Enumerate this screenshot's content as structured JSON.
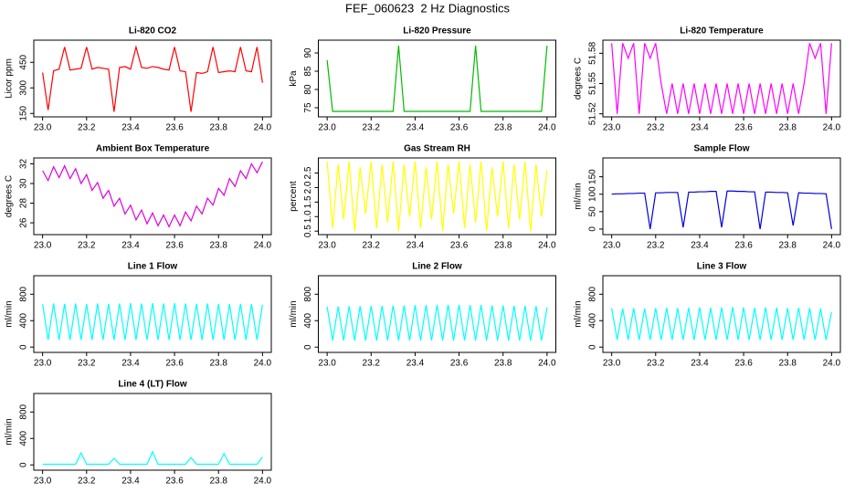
{
  "title": "FEF_060623  2 Hz Diagnostics",
  "chart_data": [
    {
      "type": "line",
      "title": "Li-820 CO2",
      "ylabel": "Licor ppm",
      "color": "#ff0000",
      "x": [
        23.0,
        23.025,
        23.05,
        23.075,
        23.1,
        23.125,
        23.15,
        23.175,
        23.2,
        23.225,
        23.25,
        23.275,
        23.3,
        23.325,
        23.35,
        23.375,
        23.4,
        23.425,
        23.45,
        23.475,
        23.5,
        23.525,
        23.55,
        23.575,
        23.6,
        23.625,
        23.65,
        23.675,
        23.7,
        23.725,
        23.75,
        23.775,
        23.8,
        23.825,
        23.85,
        23.875,
        23.9,
        23.925,
        23.95,
        23.975,
        24.0
      ],
      "values": [
        390,
        170,
        400,
        410,
        540,
        405,
        410,
        415,
        540,
        410,
        420,
        415,
        410,
        160,
        420,
        425,
        410,
        540,
        420,
        415,
        425,
        420,
        410,
        405,
        540,
        400,
        395,
        160,
        390,
        385,
        395,
        540,
        390,
        395,
        400,
        395,
        540,
        400,
        395,
        540,
        330
      ],
      "xlim": [
        22.96,
        24.04
      ],
      "xticks": [
        {
          "value": 23,
          "label": "23.0"
        },
        23.2,
        23.4,
        23.6,
        23.8,
        {
          "value": 24,
          "label": "24.0"
        }
      ],
      "ylim": [
        130,
        580
      ],
      "yticks": [
        150,
        300,
        450
      ]
    },
    {
      "type": "line",
      "title": "Li-820 Pressure",
      "ylabel": "kPa",
      "color": "#00bb00",
      "x": [
        23.0,
        23.025,
        23.05,
        23.075,
        23.1,
        23.125,
        23.15,
        23.175,
        23.2,
        23.225,
        23.25,
        23.275,
        23.3,
        23.325,
        23.35,
        23.375,
        23.4,
        23.425,
        23.45,
        23.475,
        23.5,
        23.525,
        23.55,
        23.575,
        23.6,
        23.625,
        23.65,
        23.675,
        23.7,
        23.725,
        23.75,
        23.775,
        23.8,
        23.825,
        23.85,
        23.875,
        23.9,
        23.925,
        23.95,
        23.975,
        24.0
      ],
      "values": [
        88,
        74,
        74,
        74,
        74,
        74,
        74,
        74,
        74,
        74,
        74,
        74,
        74,
        92,
        74,
        74,
        74,
        74,
        74,
        74,
        74,
        74,
        74,
        74,
        74,
        74,
        74,
        92,
        74,
        74,
        74,
        74,
        74,
        74,
        74,
        74,
        74,
        74,
        74,
        74,
        92
      ],
      "xlim": [
        22.96,
        24.04
      ],
      "xticks": [
        {
          "value": 23,
          "label": "23.0"
        },
        23.2,
        23.4,
        23.6,
        23.8,
        {
          "value": 24,
          "label": "24.0"
        }
      ],
      "ylim": [
        72.5,
        93.5
      ],
      "yticks": [
        75,
        80,
        85,
        90
      ]
    },
    {
      "type": "line",
      "title": "Li-820 Temperature",
      "ylabel": "degrees C",
      "color": "#ff00ff",
      "x": [
        23.0,
        23.025,
        23.05,
        23.075,
        23.1,
        23.125,
        23.15,
        23.175,
        23.2,
        23.225,
        23.25,
        23.275,
        23.3,
        23.325,
        23.35,
        23.375,
        23.4,
        23.425,
        23.45,
        23.475,
        23.5,
        23.525,
        23.55,
        23.575,
        23.6,
        23.625,
        23.65,
        23.675,
        23.7,
        23.725,
        23.75,
        23.775,
        23.8,
        23.825,
        23.85,
        23.875,
        23.9,
        23.925,
        23.95,
        23.975,
        24.0
      ],
      "values": [
        51.59,
        51.52,
        51.59,
        51.575,
        51.59,
        51.52,
        51.59,
        51.575,
        51.59,
        51.55,
        51.52,
        51.55,
        51.52,
        51.55,
        51.52,
        51.55,
        51.52,
        51.55,
        51.52,
        51.55,
        51.52,
        51.55,
        51.52,
        51.55,
        51.52,
        51.55,
        51.52,
        51.55,
        51.52,
        51.55,
        51.52,
        51.55,
        51.52,
        51.55,
        51.52,
        51.55,
        51.59,
        51.575,
        51.59,
        51.52,
        51.59
      ],
      "xlim": [
        22.96,
        24.04
      ],
      "xticks": [
        {
          "value": 23,
          "label": "23.0"
        },
        23.2,
        23.4,
        23.6,
        23.8,
        {
          "value": 24,
          "label": "24.0"
        }
      ],
      "ylim": [
        51.517,
        51.593
      ],
      "yticks": [
        51.52,
        51.55,
        51.58
      ]
    },
    {
      "type": "line",
      "title": "Ambient Box Temperature",
      "ylabel": "degrees C",
      "color": "#dd00dd",
      "x": [
        23.0,
        23.025,
        23.05,
        23.075,
        23.1,
        23.125,
        23.15,
        23.175,
        23.2,
        23.225,
        23.25,
        23.275,
        23.3,
        23.325,
        23.35,
        23.375,
        23.4,
        23.425,
        23.45,
        23.475,
        23.5,
        23.525,
        23.55,
        23.575,
        23.6,
        23.625,
        23.65,
        23.675,
        23.7,
        23.725,
        23.75,
        23.775,
        23.8,
        23.825,
        23.85,
        23.875,
        23.9,
        23.925,
        23.95,
        23.975,
        24.0
      ],
      "values": [
        31.3,
        30.3,
        31.7,
        30.6,
        31.8,
        30.5,
        31.5,
        30.0,
        30.9,
        29.3,
        30.1,
        28.5,
        29.3,
        27.7,
        28.5,
        26.9,
        27.8,
        26.3,
        27.3,
        25.9,
        27.0,
        25.7,
        26.8,
        25.6,
        26.8,
        25.7,
        27.1,
        26.2,
        27.7,
        26.9,
        28.5,
        27.8,
        29.5,
        28.8,
        30.5,
        29.7,
        31.3,
        30.5,
        32.0,
        31.1,
        32.2
      ],
      "xlim": [
        22.96,
        24.04
      ],
      "xticks": [
        {
          "value": 23,
          "label": "23.0"
        },
        23.2,
        23.4,
        23.6,
        23.8,
        {
          "value": 24,
          "label": "24.0"
        }
      ],
      "ylim": [
        24.8,
        32.6
      ],
      "yticks": [
        26,
        28,
        30,
        32
      ]
    },
    {
      "type": "line",
      "title": "Gas Stream RH",
      "ylabel": "percent",
      "color": "#ffff00",
      "x": [
        23.0,
        23.025,
        23.05,
        23.075,
        23.1,
        23.125,
        23.15,
        23.175,
        23.2,
        23.225,
        23.25,
        23.275,
        23.3,
        23.325,
        23.35,
        23.375,
        23.4,
        23.425,
        23.45,
        23.475,
        23.5,
        23.525,
        23.55,
        23.575,
        23.6,
        23.625,
        23.65,
        23.675,
        23.7,
        23.725,
        23.75,
        23.775,
        23.8,
        23.825,
        23.85,
        23.875,
        23.9,
        23.925,
        23.95,
        23.975,
        24.0
      ],
      "values": [
        2.9,
        0.6,
        2.8,
        0.9,
        2.9,
        0.5,
        2.7,
        1.1,
        2.9,
        0.6,
        2.8,
        0.8,
        2.9,
        0.5,
        2.8,
        1.0,
        2.9,
        0.6,
        2.7,
        0.9,
        2.9,
        0.5,
        2.8,
        1.1,
        2.9,
        0.6,
        2.8,
        0.8,
        2.9,
        0.5,
        2.7,
        1.0,
        2.9,
        0.6,
        2.8,
        0.9,
        2.9,
        0.5,
        2.8,
        1.0,
        2.6
      ],
      "xlim": [
        22.96,
        24.04
      ],
      "xticks": [
        {
          "value": 23,
          "label": "23.0"
        },
        23.2,
        23.4,
        23.6,
        23.8,
        {
          "value": 24,
          "label": "24.0"
        }
      ],
      "ylim": [
        0.38,
        3.02
      ],
      "yticks": [
        0.5,
        {
          "value": 1,
          "label": "1.0"
        },
        1.5,
        {
          "value": 2,
          "label": "2.0"
        },
        2.5
      ]
    },
    {
      "type": "line",
      "title": "Sample Flow",
      "ylabel": "ml/min",
      "color": "#0000dd",
      "x": [
        23.0,
        23.025,
        23.05,
        23.075,
        23.1,
        23.125,
        23.15,
        23.175,
        23.2,
        23.225,
        23.25,
        23.275,
        23.3,
        23.325,
        23.35,
        23.375,
        23.4,
        23.425,
        23.45,
        23.475,
        23.5,
        23.525,
        23.55,
        23.575,
        23.6,
        23.625,
        23.65,
        23.675,
        23.7,
        23.725,
        23.75,
        23.775,
        23.8,
        23.825,
        23.85,
        23.875,
        23.9,
        23.925,
        23.95,
        23.975,
        24.0
      ],
      "values": [
        100,
        101,
        101,
        102,
        102,
        103,
        103,
        0,
        104,
        104,
        105,
        105,
        105,
        5,
        106,
        106,
        107,
        107,
        108,
        108,
        5,
        109,
        109,
        108,
        108,
        107,
        107,
        0,
        106,
        106,
        105,
        105,
        104,
        10,
        104,
        103,
        103,
        102,
        102,
        101,
        0
      ],
      "xlim": [
        22.96,
        24.04
      ],
      "xticks": [
        {
          "value": 23,
          "label": "23.0"
        },
        23.2,
        23.4,
        23.6,
        23.8,
        {
          "value": 24,
          "label": "24.0"
        }
      ],
      "ylim": [
        -16,
        204
      ],
      "yticks": [
        0,
        50,
        100,
        150
      ]
    },
    {
      "type": "line",
      "title": "Line 1 Flow",
      "ylabel": "ml/min",
      "color": "#00ffff",
      "x": [
        23.0,
        23.025,
        23.05,
        23.075,
        23.1,
        23.125,
        23.15,
        23.175,
        23.2,
        23.225,
        23.25,
        23.275,
        23.3,
        23.325,
        23.35,
        23.375,
        23.4,
        23.425,
        23.45,
        23.475,
        23.5,
        23.525,
        23.55,
        23.575,
        23.6,
        23.625,
        23.65,
        23.675,
        23.7,
        23.725,
        23.75,
        23.775,
        23.8,
        23.825,
        23.85,
        23.875,
        23.9,
        23.925,
        23.95,
        23.975,
        24.0
      ],
      "values": [
        650,
        110,
        660,
        110,
        655,
        110,
        660,
        110,
        650,
        110,
        660,
        110,
        655,
        110,
        660,
        110,
        665,
        110,
        660,
        110,
        665,
        110,
        660,
        110,
        665,
        110,
        660,
        110,
        655,
        110,
        660,
        110,
        655,
        110,
        650,
        110,
        655,
        110,
        650,
        110,
        640
      ],
      "xlim": [
        22.96,
        24.04
      ],
      "xticks": [
        {
          "value": 23,
          "label": "23.0"
        },
        23.2,
        23.4,
        23.6,
        23.8,
        {
          "value": 24,
          "label": "24.0"
        }
      ],
      "ylim": [
        -80,
        1080
      ],
      "yticks": [
        0,
        400,
        800
      ]
    },
    {
      "type": "line",
      "title": "Line 2 Flow",
      "ylabel": "ml/min",
      "color": "#00ffff",
      "x": [
        23.0,
        23.025,
        23.05,
        23.075,
        23.1,
        23.125,
        23.15,
        23.175,
        23.2,
        23.225,
        23.25,
        23.275,
        23.3,
        23.325,
        23.35,
        23.375,
        23.4,
        23.425,
        23.45,
        23.475,
        23.5,
        23.525,
        23.55,
        23.575,
        23.6,
        23.625,
        23.65,
        23.675,
        23.7,
        23.725,
        23.75,
        23.775,
        23.8,
        23.825,
        23.85,
        23.875,
        23.9,
        23.925,
        23.95,
        23.975,
        24.0
      ],
      "values": [
        610,
        100,
        615,
        100,
        620,
        100,
        620,
        100,
        625,
        100,
        625,
        100,
        630,
        100,
        630,
        100,
        635,
        100,
        635,
        100,
        640,
        100,
        640,
        100,
        640,
        100,
        635,
        100,
        635,
        100,
        630,
        100,
        630,
        100,
        625,
        100,
        625,
        100,
        620,
        100,
        600
      ],
      "xlim": [
        22.96,
        24.04
      ],
      "xticks": [
        {
          "value": 23,
          "label": "23.0"
        },
        23.2,
        23.4,
        23.6,
        23.8,
        {
          "value": 24,
          "label": "24.0"
        }
      ],
      "ylim": [
        -80,
        1080
      ],
      "yticks": [
        0,
        400,
        800
      ]
    },
    {
      "type": "line",
      "title": "Line 3 Flow",
      "ylabel": "ml/min",
      "color": "#00ffff",
      "x": [
        23.0,
        23.025,
        23.05,
        23.075,
        23.1,
        23.125,
        23.15,
        23.175,
        23.2,
        23.225,
        23.25,
        23.275,
        23.3,
        23.325,
        23.35,
        23.375,
        23.4,
        23.425,
        23.45,
        23.475,
        23.5,
        23.525,
        23.55,
        23.575,
        23.6,
        23.625,
        23.65,
        23.675,
        23.7,
        23.725,
        23.75,
        23.775,
        23.8,
        23.825,
        23.85,
        23.875,
        23.9,
        23.925,
        23.95,
        23.975,
        24.0
      ],
      "values": [
        590,
        110,
        585,
        110,
        590,
        110,
        585,
        110,
        590,
        110,
        595,
        110,
        590,
        110,
        595,
        110,
        600,
        110,
        595,
        110,
        600,
        110,
        605,
        110,
        600,
        110,
        595,
        110,
        600,
        110,
        595,
        110,
        590,
        110,
        595,
        110,
        590,
        110,
        585,
        110,
        530
      ],
      "xlim": [
        22.96,
        24.04
      ],
      "xticks": [
        {
          "value": 23,
          "label": "23.0"
        },
        23.2,
        23.4,
        23.6,
        23.8,
        {
          "value": 24,
          "label": "24.0"
        }
      ],
      "ylim": [
        -80,
        1080
      ],
      "yticks": [
        0,
        400,
        800
      ]
    },
    {
      "type": "line",
      "title": "Line 4 (LT) Flow",
      "ylabel": "ml/min",
      "color": "#00ffff",
      "x": [
        23.0,
        23.025,
        23.05,
        23.075,
        23.1,
        23.125,
        23.15,
        23.175,
        23.2,
        23.225,
        23.25,
        23.275,
        23.3,
        23.325,
        23.35,
        23.375,
        23.4,
        23.425,
        23.45,
        23.475,
        23.5,
        23.525,
        23.55,
        23.575,
        23.6,
        23.625,
        23.65,
        23.675,
        23.7,
        23.725,
        23.75,
        23.775,
        23.8,
        23.825,
        23.85,
        23.875,
        23.9,
        23.925,
        23.95,
        23.975,
        24.0
      ],
      "values": [
        10,
        10,
        10,
        10,
        10,
        10,
        10,
        180,
        10,
        10,
        10,
        10,
        10,
        100,
        10,
        10,
        10,
        10,
        10,
        10,
        200,
        10,
        10,
        10,
        10,
        10,
        10,
        110,
        10,
        10,
        10,
        10,
        10,
        170,
        10,
        10,
        10,
        10,
        10,
        10,
        120
      ],
      "xlim": [
        22.96,
        24.04
      ],
      "xticks": [
        {
          "value": 23,
          "label": "23.0"
        },
        23.2,
        23.4,
        23.6,
        23.8,
        {
          "value": 24,
          "label": "24.0"
        }
      ],
      "ylim": [
        -80,
        1080
      ],
      "yticks": [
        0,
        400,
        800
      ]
    }
  ]
}
